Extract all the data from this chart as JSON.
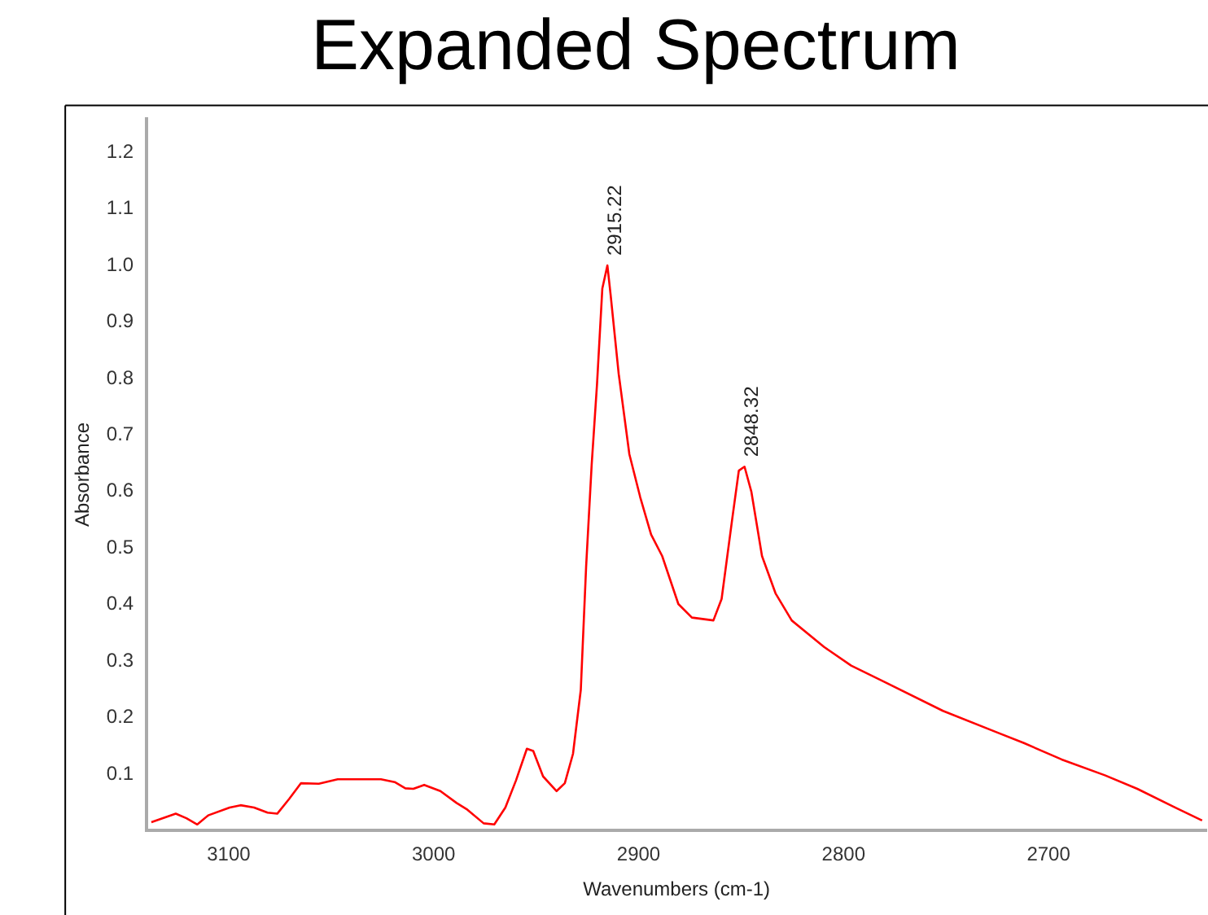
{
  "chart_data": {
    "type": "line",
    "title": "Expanded Spectrum",
    "xlabel": "Wavenumbers (cm-1)",
    "ylabel": "Absorbance",
    "xlim": [
      3140,
      2623
    ],
    "ylim": [
      0,
      1.26
    ],
    "xticks": [
      3100,
      3000,
      2900,
      2800,
      2700
    ],
    "yticks": [
      0.1,
      0.2,
      0.3,
      0.4,
      0.5,
      0.6,
      0.7,
      0.8,
      0.9,
      {
        "value": 1,
        "label": "1.0"
      },
      1.1,
      1.2
    ],
    "grid": false,
    "legend": false,
    "series": [
      {
        "color": "#ff0000",
        "x": [
          3137.7,
          3125.8,
          3120.6,
          3115.3,
          3110,
          3099.5,
          3094.2,
          3087.6,
          3081,
          3076.3,
          3070.5,
          3064.7,
          3056,
          3046.8,
          3025.7,
          3019,
          3013.8,
          3009.9,
          3004.6,
          2996.7,
          2988.8,
          2983.5,
          2975.6,
          2970.4,
          2965,
          2959.8,
          2954.5,
          2951.4,
          2946.6,
          2940,
          2936,
          2932,
          2928.2,
          2925.6,
          2922.9,
          2920.3,
          2917.7,
          2915.22,
          2913.7,
          2909.7,
          2904.5,
          2899.2,
          2893.9,
          2888.5,
          2880.6,
          2874,
          2863.5,
          2859.5,
          2854.3,
          2851.1,
          2848.32,
          2845,
          2839.8,
          2833.2,
          2825.3,
          2809.5,
          2796.3,
          2780.5,
          2751.5,
          2725.2,
          2712,
          2693.6,
          2672.5,
          2656.7,
          2638.3,
          2625.1
        ],
        "values": [
          0.015,
          0.03,
          0.022,
          0.011,
          0.027,
          0.041,
          0.045,
          0.041,
          0.032,
          0.03,
          0.056,
          0.084,
          0.083,
          0.091,
          0.091,
          0.086,
          0.075,
          0.074,
          0.081,
          0.07,
          0.049,
          0.037,
          0.013,
          0.011,
          0.041,
          0.089,
          0.145,
          0.141,
          0.096,
          0.07,
          0.084,
          0.136,
          0.249,
          0.467,
          0.647,
          0.789,
          0.959,
          1.0,
          0.95,
          0.808,
          0.666,
          0.59,
          0.524,
          0.486,
          0.401,
          0.377,
          0.372,
          0.41,
          0.552,
          0.637,
          0.644,
          0.6,
          0.486,
          0.42,
          0.372,
          0.325,
          0.292,
          0.264,
          0.212,
          0.174,
          0.155,
          0.126,
          0.098,
          0.074,
          0.041,
          0.018
        ]
      }
    ],
    "annotations": [
      {
        "text": "2915.22",
        "x": 2915.22,
        "y": 1.0
      },
      {
        "text": "2848.32",
        "x": 2848.32,
        "y": 0.644
      }
    ]
  }
}
